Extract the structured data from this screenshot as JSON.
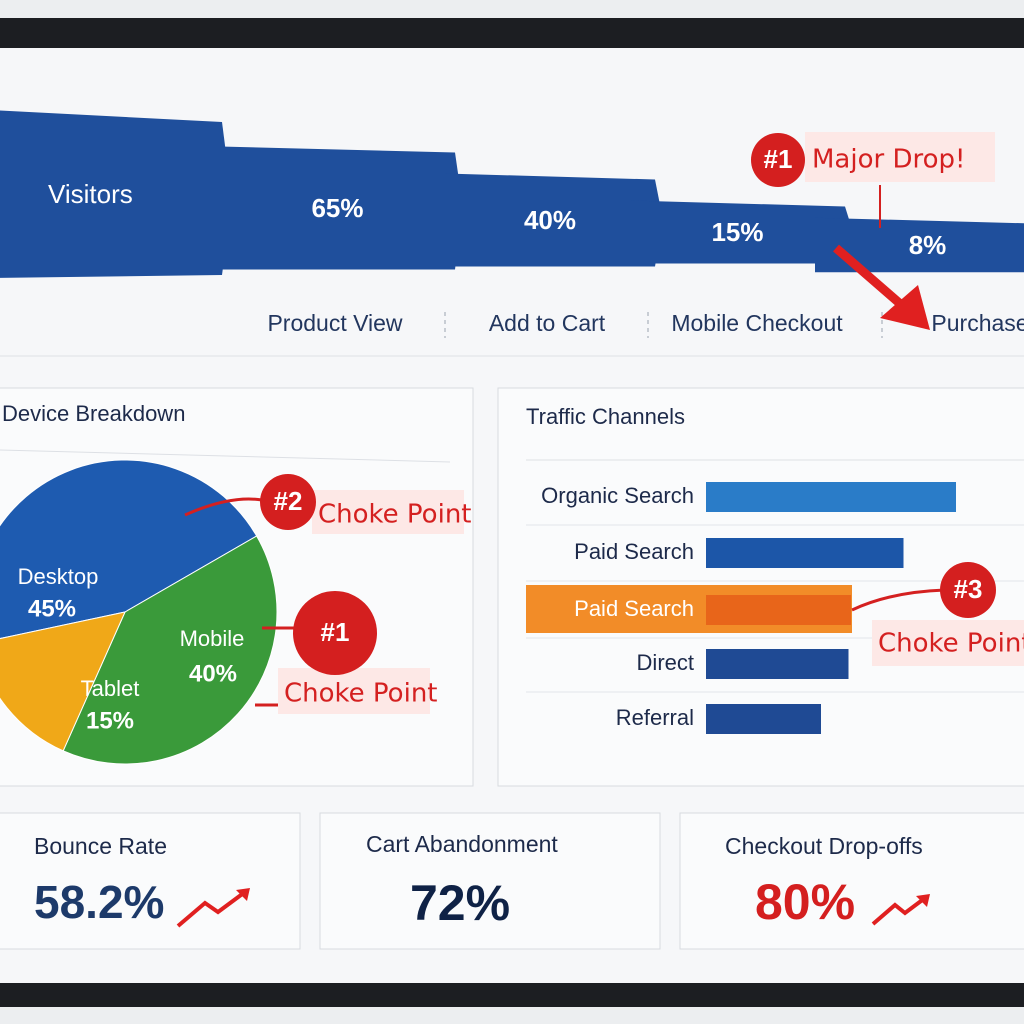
{
  "chart_data": [
    {
      "type": "funnel",
      "start_label": "Visitors",
      "categories": [
        "Product View",
        "Add to Cart",
        "Mobile Checkout",
        "Purchase"
      ],
      "values": [
        65,
        40,
        15,
        8
      ],
      "value_labels": [
        "65%",
        "40%",
        "15%",
        "8%"
      ],
      "color": "#1f4f9c"
    },
    {
      "type": "pie",
      "title": "Device Breakdown",
      "categories": [
        "Desktop",
        "Mobile",
        "Tablet"
      ],
      "values": [
        45,
        40,
        15
      ],
      "value_labels": [
        "45%",
        "40%",
        "15%"
      ],
      "colors": [
        "#1e5bb0",
        "#3a9a3a",
        "#f0a818"
      ]
    },
    {
      "type": "hbar",
      "title": "Traffic Channels",
      "categories": [
        "Organic Search",
        "Paid Search",
        "Paid Search",
        "Direct",
        "Referral"
      ],
      "values": [
        100,
        79,
        58,
        57,
        46
      ],
      "xlim": [
        0,
        100
      ],
      "colors": [
        "#2a7cc8",
        "#1c56a8",
        "#e8651a",
        "#1f4a94",
        "#1f4a94"
      ]
    }
  ],
  "annotations": [
    {
      "badge": "#1",
      "text": "Major Drop!"
    },
    {
      "badge": "#2",
      "text": "Choke Point"
    },
    {
      "badge": "#1",
      "text": "Choke Point"
    },
    {
      "badge": "#3",
      "text": "Choke Point"
    }
  ],
  "kpis": [
    {
      "title": "Bounce Rate",
      "value": "58.2%"
    },
    {
      "title": "Cart Abandonment",
      "value": "72%"
    },
    {
      "title": "Checkout Drop-offs",
      "value": "80%"
    }
  ]
}
